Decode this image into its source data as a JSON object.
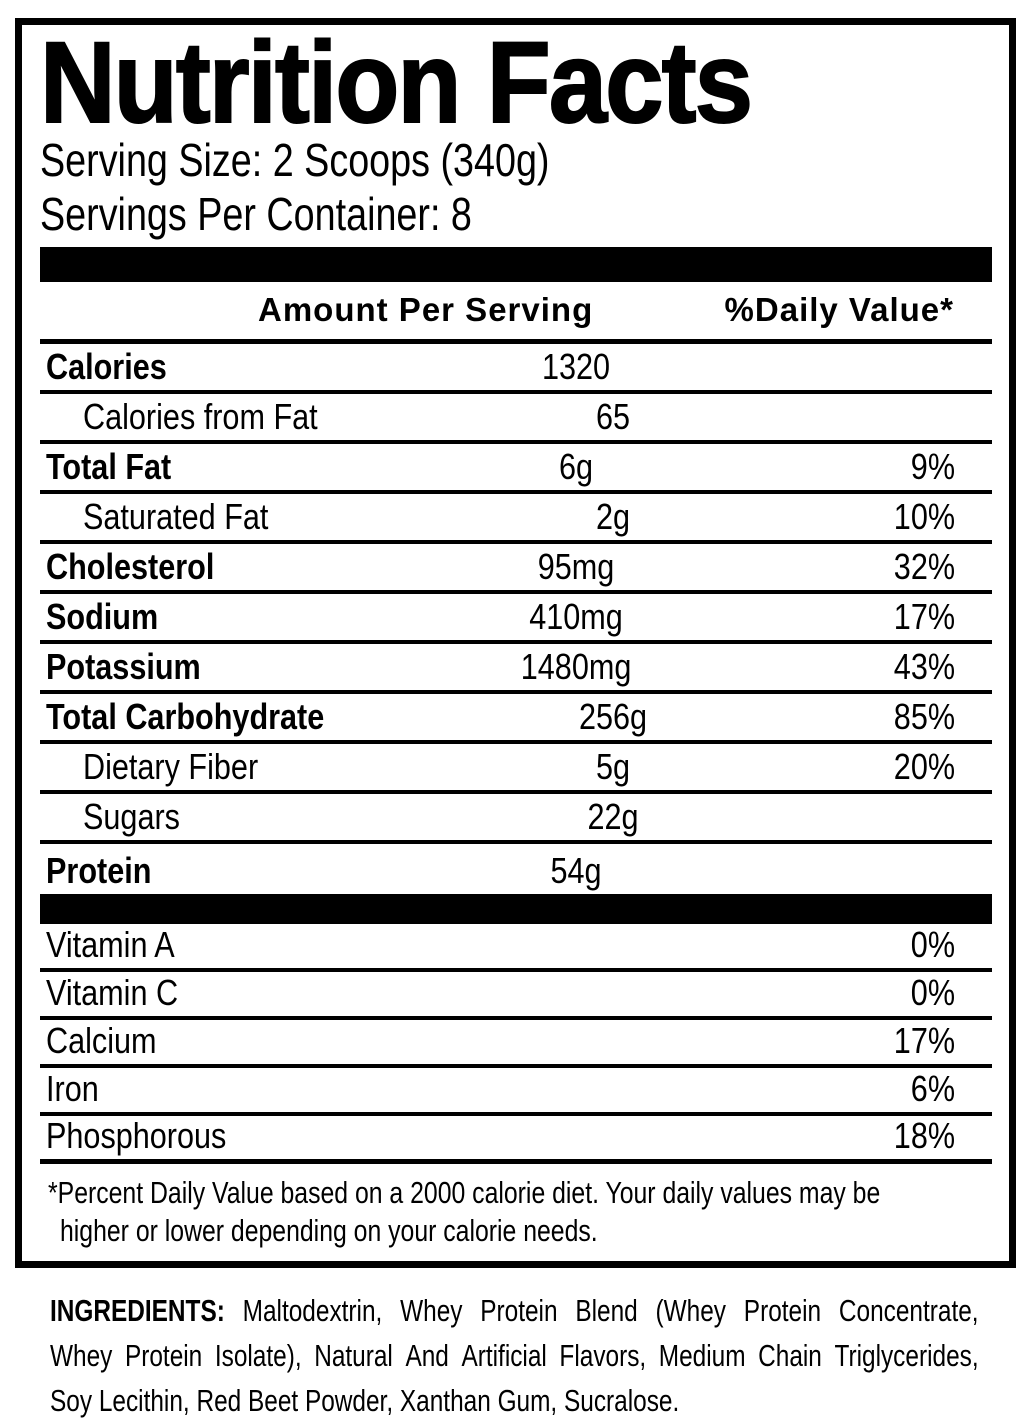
{
  "label": {
    "title": "Nutrition Facts",
    "serving_size": "Serving Size: 2 Scoops (340g)",
    "servings_per_container": "Servings Per Container: 8",
    "columns": {
      "amount": "Amount Per Serving",
      "daily_value": "%Daily Value*"
    },
    "rows": [
      {
        "name": "Calories",
        "amount": "1320",
        "dv": "",
        "bold": true,
        "indent": false
      },
      {
        "name": "Calories from Fat",
        "amount": "65",
        "dv": "",
        "bold": false,
        "indent": true
      },
      {
        "name": "Total Fat",
        "amount": "6g",
        "dv": "9%",
        "bold": true,
        "indent": false
      },
      {
        "name": "Saturated Fat",
        "amount": "2g",
        "dv": "10%",
        "bold": false,
        "indent": true
      },
      {
        "name": "Cholesterol",
        "amount": "95mg",
        "dv": "32%",
        "bold": true,
        "indent": false
      },
      {
        "name": "Sodium",
        "amount": "410mg",
        "dv": "17%",
        "bold": true,
        "indent": false
      },
      {
        "name": "Potassium",
        "amount": "1480mg",
        "dv": "43%",
        "bold": true,
        "indent": false
      },
      {
        "name": "Total Carbohydrate",
        "amount": "256g",
        "dv": "85%",
        "bold": true,
        "indent": false
      },
      {
        "name": "Dietary Fiber",
        "amount": "5g",
        "dv": "20%",
        "bold": false,
        "indent": true
      },
      {
        "name": "Sugars",
        "amount": "22g",
        "dv": "",
        "bold": false,
        "indent": true
      },
      {
        "name": "Protein",
        "amount": "54g",
        "dv": "",
        "bold": true,
        "indent": false
      }
    ],
    "micronutrients": [
      {
        "name": "Vitamin A",
        "dv": "0%"
      },
      {
        "name": "Vitamin C",
        "dv": "0%"
      },
      {
        "name": "Calcium",
        "dv": "17%"
      },
      {
        "name": "Iron",
        "dv": "6%"
      },
      {
        "name": "Phosphorous",
        "dv": "18%"
      }
    ],
    "footnote_lines": [
      "*Percent Daily Value based on a 2000 calorie diet. Your daily values may be",
      "higher or lower depending on your calorie needs."
    ]
  },
  "ingredients": {
    "label": "INGREDIENTS:",
    "lines": [
      "Maltodextrin, Whey Protein Blend (Whey Protein Concentrate,",
      "Whey Protein Isolate), Natural And Artificial Flavors, Medium Chain Triglycerides,",
      "Soy Lecithin, Red Beet Powder, Xanthan Gum, Sucralose."
    ]
  },
  "colors": {
    "ink": "#000000",
    "paper": "#ffffff"
  }
}
